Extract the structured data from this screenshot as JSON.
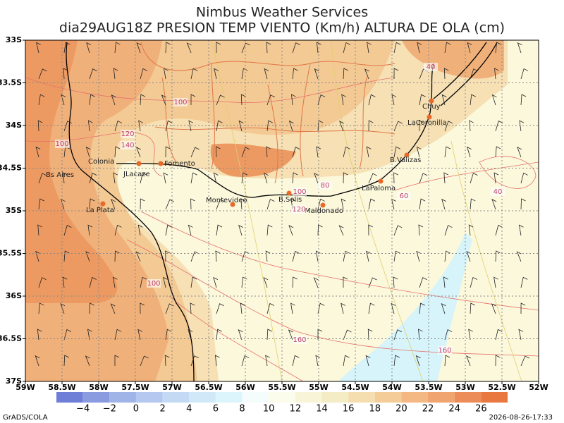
{
  "header": {
    "title": "Nimbus Weather Services",
    "subtitle": "dia29AUG18Z PRESION TEMP VIENTO (Km/h) ALTURA DE OLA (cm)"
  },
  "map": {
    "lon_ticks": [
      "59W",
      "58.5W",
      "58W",
      "57.5W",
      "57W",
      "56.5W",
      "56W",
      "55.5W",
      "55W",
      "54.5W",
      "54W",
      "53.5W",
      "53W",
      "52.5W",
      "52W"
    ],
    "lat_ticks": [
      "33S",
      "33.5S",
      "34S",
      "34.5S",
      "35S",
      "35.5S",
      "36S",
      "36.5S",
      "37S"
    ],
    "cities": [
      "Colonia",
      "JLacaze",
      "Fomento",
      "Bs Aires",
      "La Plata",
      "Montevideo",
      "B.Solis",
      "Maldonado",
      "LaPaloma",
      "B.Valizas",
      "LaCoronilla",
      "Chuy"
    ],
    "contour_labels": [
      "100",
      "120",
      "140",
      "100",
      "100",
      "80",
      "120",
      "60",
      "40",
      "40",
      "100",
      "160",
      "160"
    ]
  },
  "colorbar": {
    "labels": [
      "−4",
      "−2",
      "0",
      "2",
      "4",
      "6",
      "8",
      "10",
      "12",
      "14",
      "16",
      "18",
      "20",
      "22",
      "24",
      "26"
    ],
    "colors": [
      "#6f7fd8",
      "#8a9be0",
      "#a0b4e8",
      "#b4c8f0",
      "#c4daf4",
      "#d0e8f8",
      "#dcf4fc",
      "#f4fcfc",
      "#fcfcec",
      "#f8f4d8",
      "#f4ecc4",
      "#f4deb0",
      "#f4cc98",
      "#f4b884",
      "#f0a470",
      "#ec8c58",
      "#e87840"
    ]
  },
  "footer": {
    "left": "GrADS/COLA",
    "right": "2026-08-26-17:33"
  }
}
